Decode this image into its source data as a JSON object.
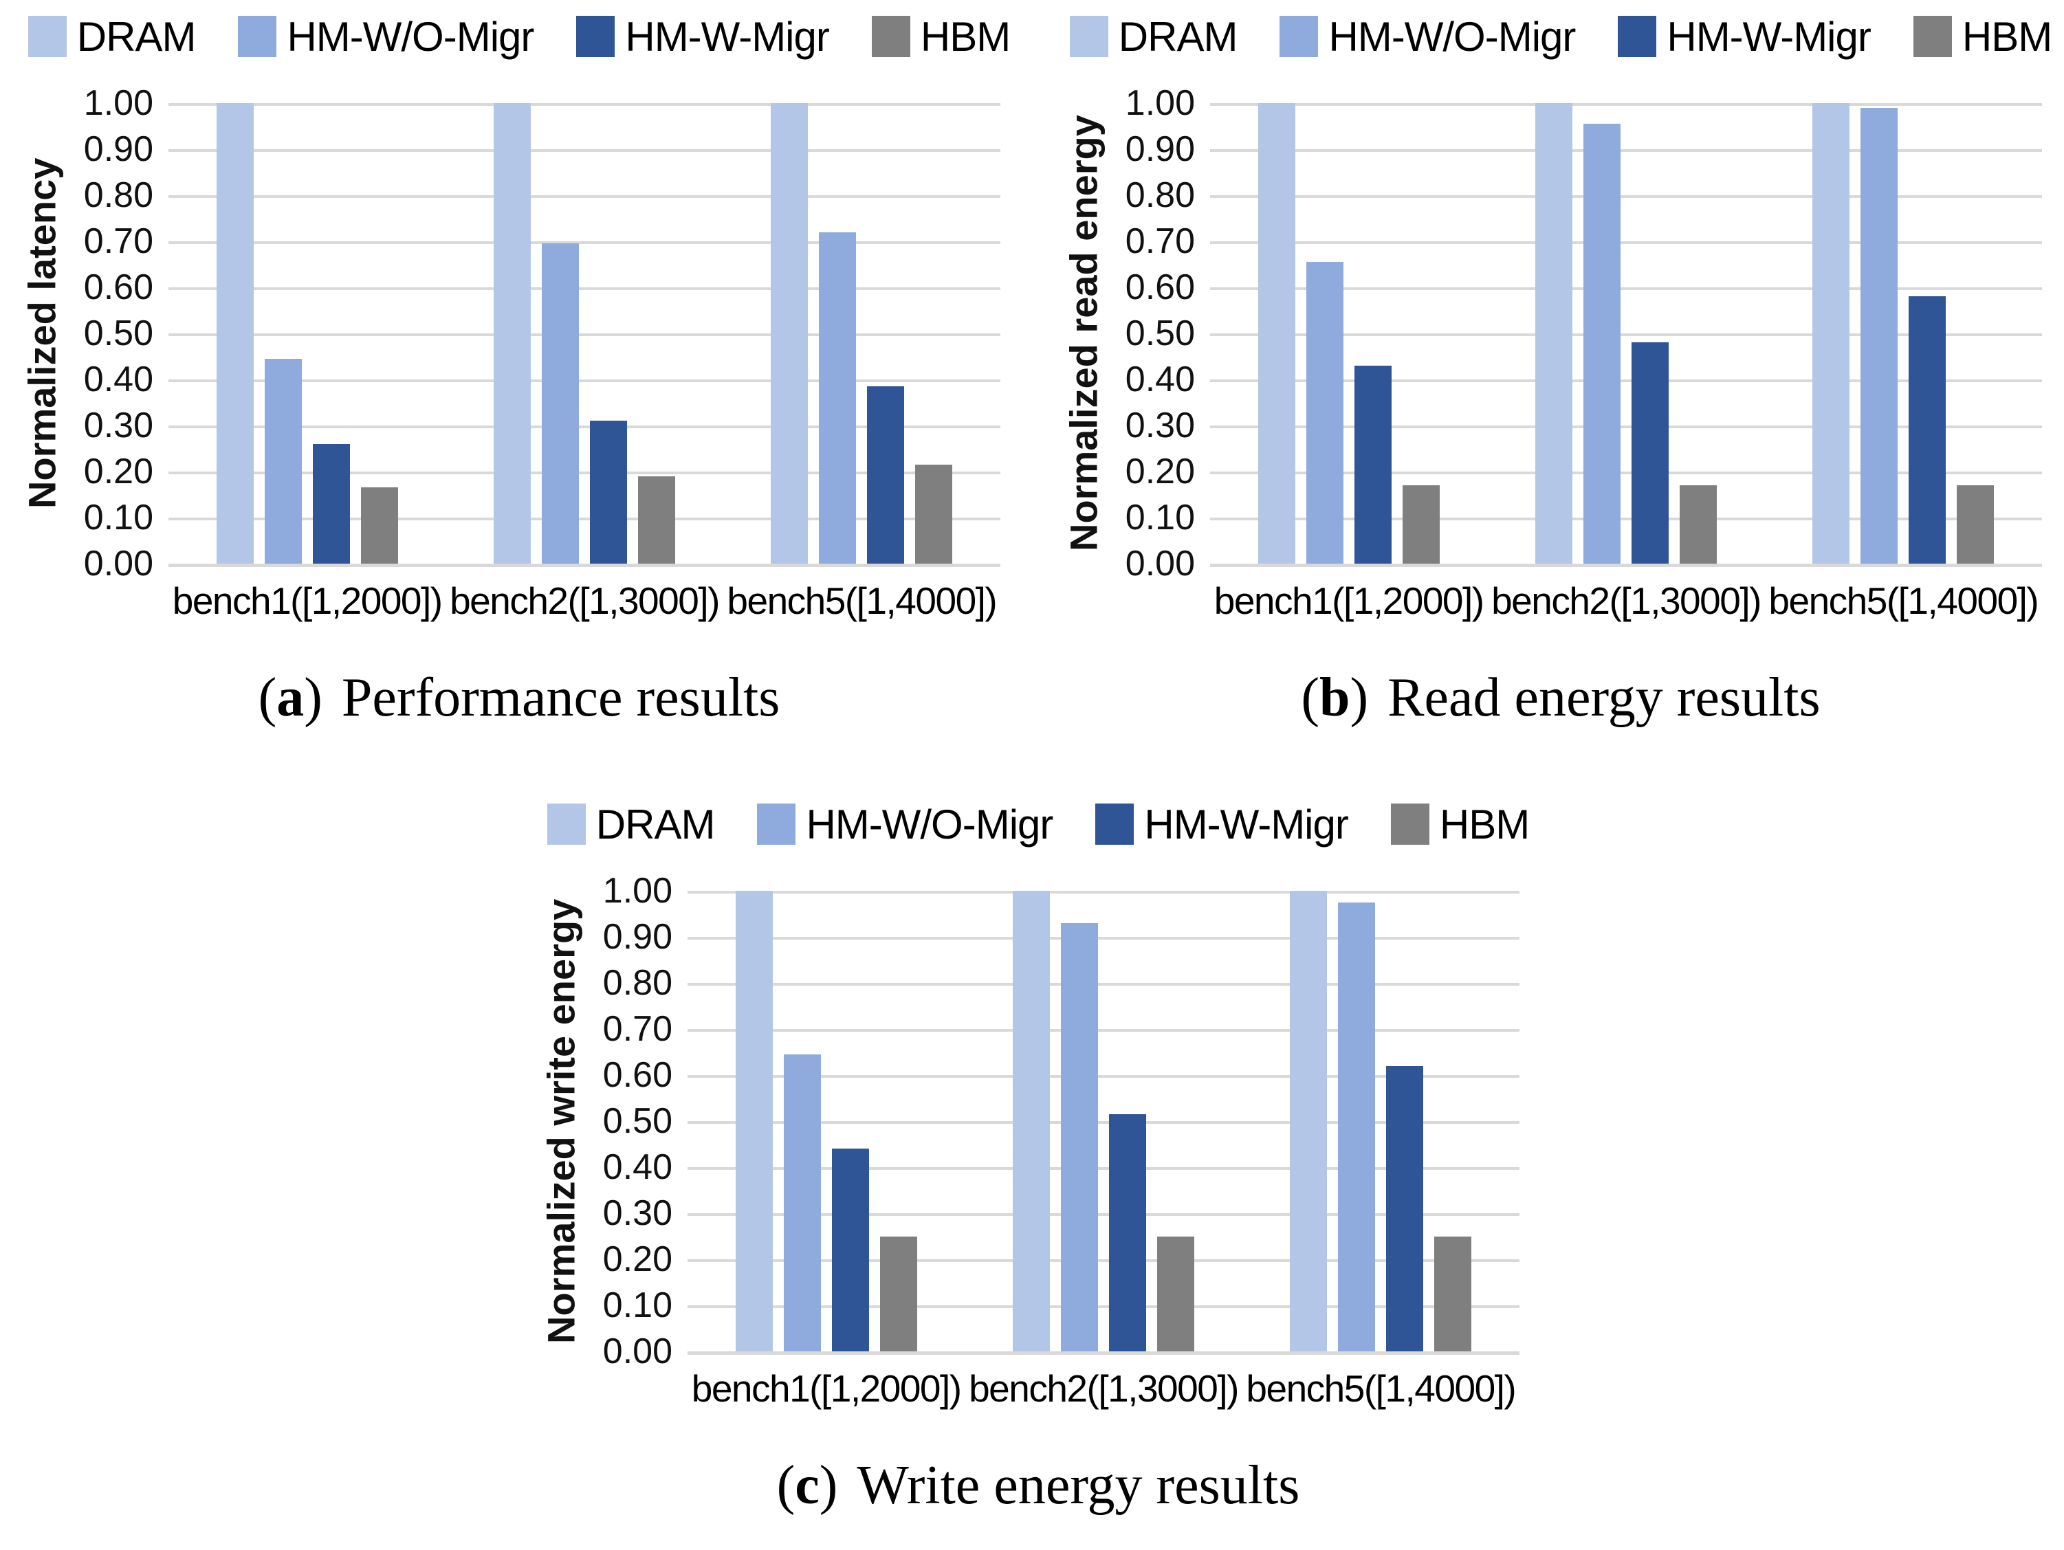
{
  "page": {
    "background": "#ffffff"
  },
  "colors": {
    "gridline": "#d9d9d9",
    "axis_text": "#111111",
    "caption_text": "#000000"
  },
  "y_axis": {
    "tick_labels": [
      "1.00",
      "0.90",
      "0.80",
      "0.70",
      "0.60",
      "0.50",
      "0.40",
      "0.30",
      "0.20",
      "0.10",
      "0.00"
    ]
  },
  "chart_data": [
    {
      "type": "bar",
      "panel": "a",
      "caption_letter": "a",
      "caption": "Performance results",
      "ylabel": "Normalized latency",
      "ylim": [
        0,
        1
      ],
      "ytick_step": 0.1,
      "grid": true,
      "legend_position": "top",
      "categories": [
        "bench1([1,2000])",
        "bench2([1,3000])",
        "bench5([1,4000])"
      ],
      "series": [
        {
          "name": "DRAM",
          "color": "#b4c6e7",
          "values": [
            1.0,
            1.0,
            1.0
          ]
        },
        {
          "name": "HM-W/O-Migr",
          "color": "#8faadc",
          "values": [
            0.445,
            0.695,
            0.72
          ]
        },
        {
          "name": "HM-W-Migr",
          "color": "#2f5597",
          "values": [
            0.26,
            0.31,
            0.385
          ]
        },
        {
          "name": "HBM",
          "color": "#7f7f7f",
          "values": [
            0.165,
            0.19,
            0.215
          ]
        }
      ]
    },
    {
      "type": "bar",
      "panel": "b",
      "caption_letter": "b",
      "caption": "Read energy results",
      "ylabel": "Normalized read energy",
      "ylim": [
        0,
        1
      ],
      "ytick_step": 0.1,
      "grid": true,
      "legend_position": "top",
      "categories": [
        "bench1([1,2000])",
        "bench2([1,3000])",
        "bench5([1,4000])"
      ],
      "series": [
        {
          "name": "DRAM",
          "color": "#b4c6e7",
          "values": [
            1.0,
            1.0,
            1.0
          ]
        },
        {
          "name": "HM-W/O-Migr",
          "color": "#8faadc",
          "values": [
            0.655,
            0.955,
            0.99
          ]
        },
        {
          "name": "HM-W-Migr",
          "color": "#2f5597",
          "values": [
            0.43,
            0.48,
            0.58
          ]
        },
        {
          "name": "HBM",
          "color": "#7f7f7f",
          "values": [
            0.17,
            0.17,
            0.17
          ]
        }
      ]
    },
    {
      "type": "bar",
      "panel": "c",
      "caption_letter": "c",
      "caption": "Write energy results",
      "ylabel": "Normalized write energy",
      "ylim": [
        0,
        1
      ],
      "ytick_step": 0.1,
      "grid": true,
      "legend_position": "top",
      "categories": [
        "bench1([1,2000])",
        "bench2([1,3000])",
        "bench5([1,4000])"
      ],
      "series": [
        {
          "name": "DRAM",
          "color": "#b4c6e7",
          "values": [
            1.0,
            1.0,
            1.0
          ]
        },
        {
          "name": "HM-W/O-Migr",
          "color": "#8faadc",
          "values": [
            0.645,
            0.93,
            0.975
          ]
        },
        {
          "name": "HM-W-Migr",
          "color": "#2f5597",
          "values": [
            0.44,
            0.515,
            0.62
          ]
        },
        {
          "name": "HBM",
          "color": "#7f7f7f",
          "values": [
            0.25,
            0.25,
            0.25
          ]
        }
      ]
    }
  ]
}
